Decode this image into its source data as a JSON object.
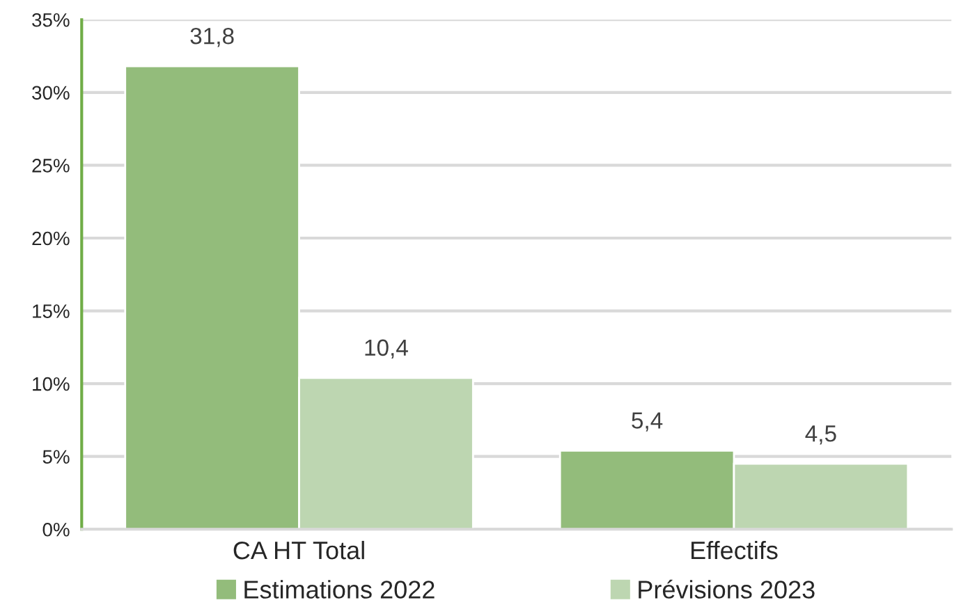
{
  "chart_data": {
    "type": "bar",
    "categories": [
      "CA HT Total",
      "Effectifs"
    ],
    "series": [
      {
        "name": "Estimations 2022",
        "color": "#93bc7b",
        "values": [
          31.8,
          5.4
        ],
        "value_labels": [
          "31,8",
          "5,4"
        ]
      },
      {
        "name": "Prévisions 2023",
        "color": "#bdd6b1",
        "values": [
          10.4,
          4.5
        ],
        "value_labels": [
          "10,4",
          "4,5"
        ]
      }
    ],
    "ylim": [
      0,
      35
    ],
    "yticks": [
      {
        "value": 0,
        "label": "0%"
      },
      {
        "value": 5,
        "label": "5%"
      },
      {
        "value": 10,
        "label": "10%"
      },
      {
        "value": 15,
        "label": "15%"
      },
      {
        "value": 20,
        "label": "20%"
      },
      {
        "value": 25,
        "label": "25%"
      },
      {
        "value": 30,
        "label": "30%"
      },
      {
        "value": 35,
        "label": "35%"
      }
    ],
    "grid": "y",
    "legend": "bottom"
  }
}
